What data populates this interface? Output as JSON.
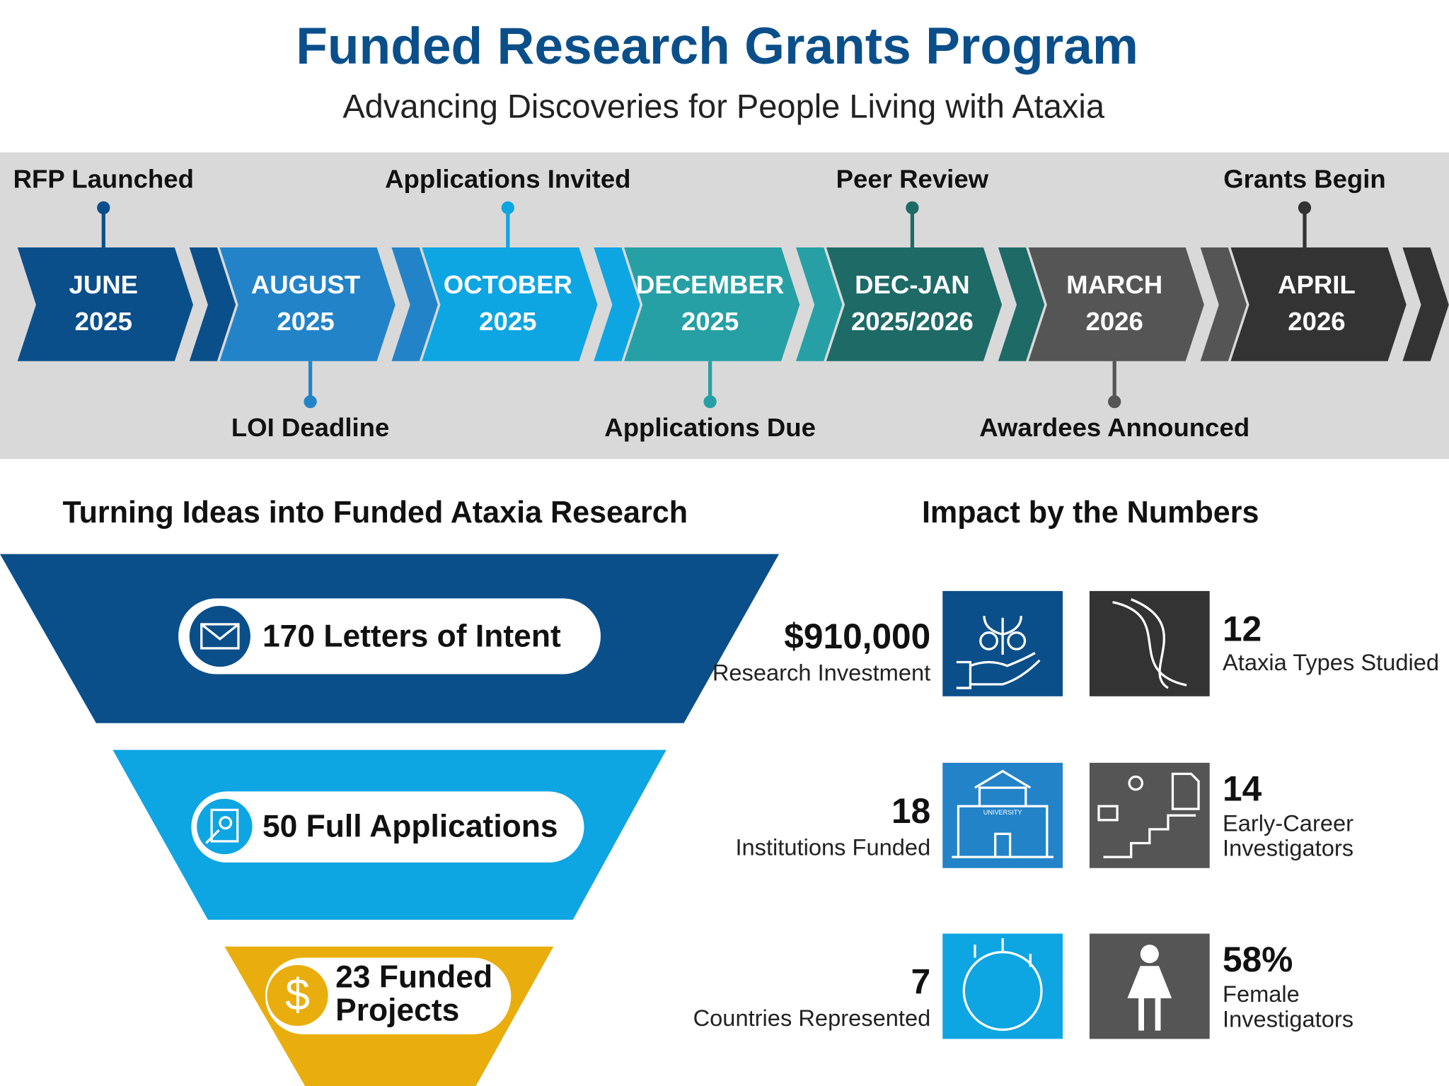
{
  "header": {
    "title": "Funded Research Grants Program",
    "subtitle": "Advancing Discoveries for People Living with Ataxia"
  },
  "timeline": {
    "steps": [
      {
        "date": [
          "JUNE",
          "2025"
        ],
        "label": "RFP Launched"
      },
      {
        "date": [
          "AUGUST",
          "2025"
        ],
        "label": "LOI Deadline"
      },
      {
        "date": [
          "OCTOBER",
          "2025"
        ],
        "label": "Applications Invited"
      },
      {
        "date": [
          "DECEMBER",
          "2025"
        ],
        "label": "Applications Due"
      },
      {
        "date": [
          "DEC-JAN",
          "2025/2026"
        ],
        "label": "Peer Review"
      },
      {
        "date": [
          "MARCH",
          "2026"
        ],
        "label": "Awardees Announced"
      },
      {
        "date": [
          "APRIL",
          "2026"
        ],
        "label": "Grants Begin"
      }
    ]
  },
  "funnel": {
    "title": "Turning Ideas into Funded Ataxia Research",
    "stages": [
      [
        "170 Letters of Intent"
      ],
      [
        "50 Full Applications"
      ],
      [
        "23 Funded",
        "Projects"
      ]
    ]
  },
  "impact": {
    "title": "Impact by the Numbers",
    "icon_label": "UNIVERSITY",
    "items": [
      {
        "value": "$910,000",
        "label": [
          "Research Investment"
        ]
      },
      {
        "value": "12",
        "label": [
          "Ataxia Types Studied"
        ]
      },
      {
        "value": "18",
        "label": [
          "Institutions Funded"
        ]
      },
      {
        "value": "14",
        "label": [
          "Early-Career",
          "Investigators"
        ]
      },
      {
        "value": "7",
        "label": [
          "Countries Represented"
        ]
      },
      {
        "value": "58%",
        "label": [
          "Female",
          "Investigators"
        ]
      }
    ]
  }
}
